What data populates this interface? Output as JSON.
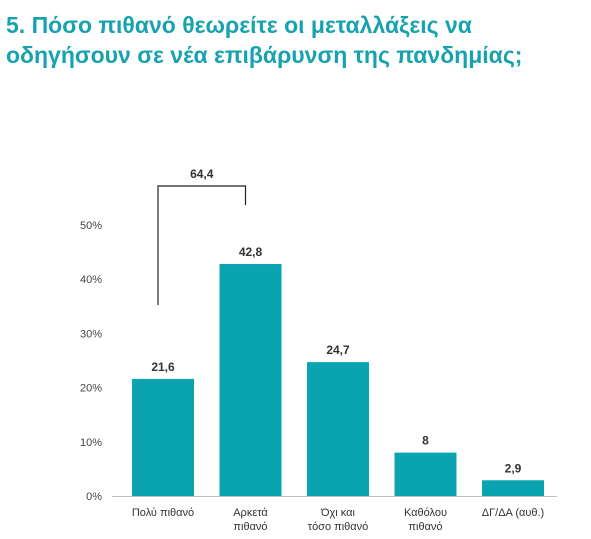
{
  "page": {
    "title_line1": "5. Πόσο πιθανό θεωρείτε οι μεταλλάξεις να",
    "title_line2": "οδηγήσουν σε νέα επιβάρυνση της πανδημίας;",
    "title_color": "#17a2b0"
  },
  "chart_data": {
    "type": "bar",
    "categories": [
      [
        "Πολύ πιθανό"
      ],
      [
        "Αρκετά",
        "πιθανό"
      ],
      [
        "Όχι και",
        "τόσο πιθανό"
      ],
      [
        "Καθόλου",
        "πιθανό"
      ],
      [
        "ΔΓ/ΔΑ (αυθ.)"
      ]
    ],
    "values": [
      21.6,
      42.8,
      24.7,
      8,
      2.9
    ],
    "value_labels": [
      "21,6",
      "42,8",
      "24,7",
      "8",
      "2,9"
    ],
    "ylim": [
      0,
      50
    ],
    "yticks": [
      0,
      10,
      20,
      30,
      40,
      50
    ],
    "ytick_labels": [
      "0%",
      "10%",
      "20%",
      "30%",
      "40%",
      "50%"
    ],
    "bar_color": "#0aa3b0",
    "grid": false,
    "bracket": {
      "from_category": 0,
      "to_category": 1,
      "label": "64,4"
    }
  }
}
